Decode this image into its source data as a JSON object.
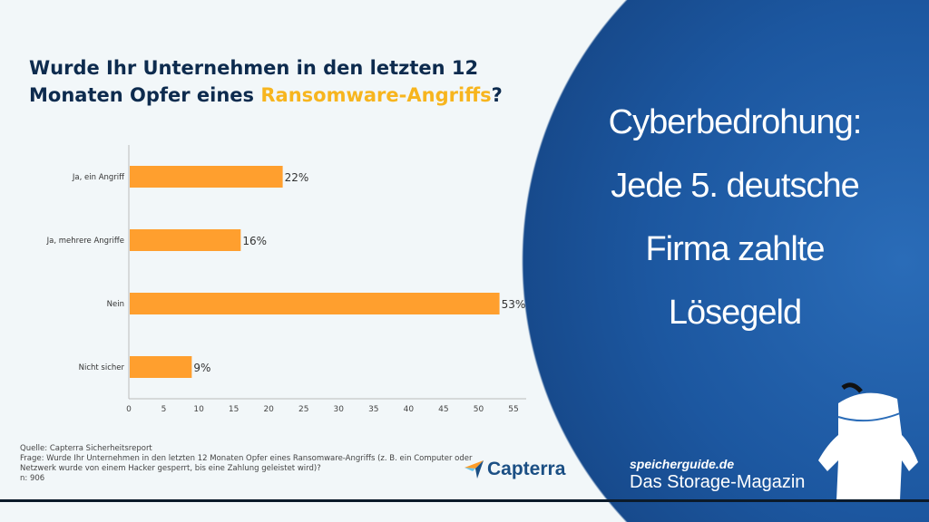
{
  "chart_data": {
    "type": "bar",
    "orientation": "horizontal",
    "title_part1": "Wurde Ihr Unternehmen in den letzten 12",
    "title_part2": "Monaten Opfer eines ",
    "title_highlight": "Ransomware-Angriffs",
    "title_end": "?",
    "categories": [
      "Ja, ein Angriff",
      "Ja, mehrere Angriffe",
      "Nein",
      "Nicht sicher"
    ],
    "values": [
      22,
      16,
      53,
      9
    ],
    "data_labels": [
      "22%",
      "16%",
      "53%",
      "9%"
    ],
    "xlim": [
      0,
      55
    ],
    "xticks": [
      0,
      5,
      10,
      15,
      20,
      25,
      30,
      35,
      40,
      45,
      50,
      55
    ],
    "grid": false,
    "bar_color": "#ff9f2e",
    "highlight_color": "#f7b51e"
  },
  "footer": {
    "source": "Quelle: Capterra Sicherheitsreport",
    "question_line1": "Frage: Wurde Ihr Unternehmen in den letzten 12 Monaten Opfer eines Ransomware-Angriffs (z. B. ein Computer oder",
    "question_line2": "Netzwerk wurde von einem Hacker gesperrt, bis eine Zahlung geleistet wird)?",
    "n": "n: 906",
    "logo": "Capterra"
  },
  "headline": {
    "lines": [
      "Cyberbedrohung:",
      "Jede 5. deutsche",
      "Firma zahlte",
      "Lösegeld"
    ]
  },
  "brand": {
    "site": "speicherguide.de",
    "tagline": "Das Storage-Magazin"
  },
  "colors": {
    "circle": "#1c57a0",
    "background": "#f2f7f9",
    "title": "#0d2b4e"
  }
}
